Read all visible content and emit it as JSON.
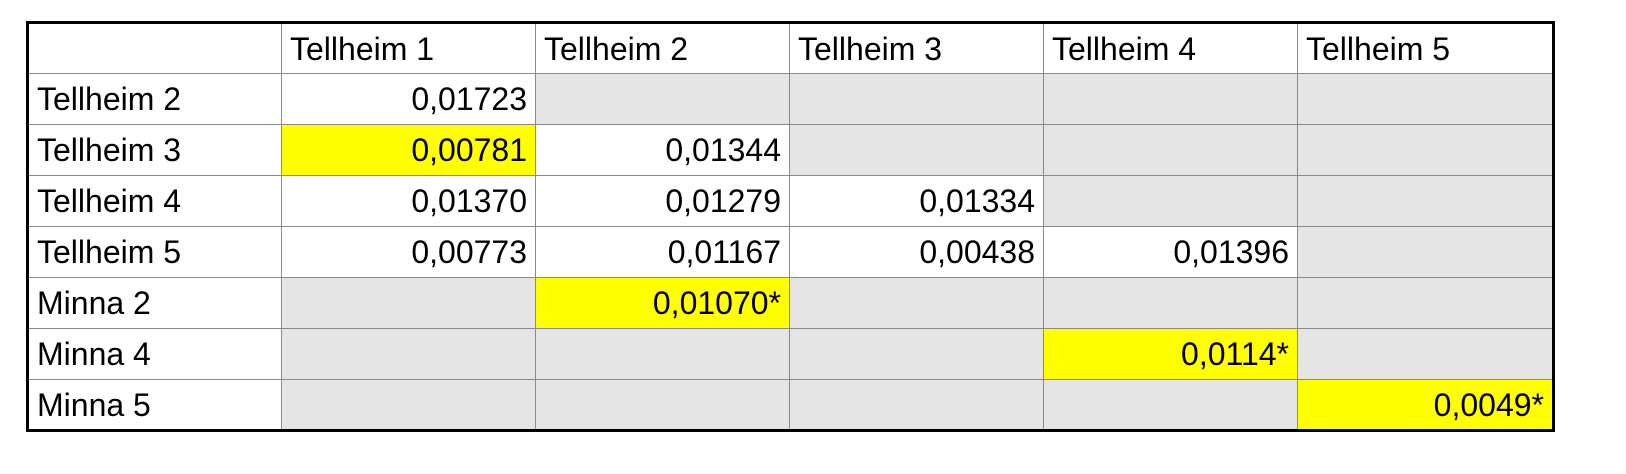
{
  "colors": {
    "cell_white": "#ffffff",
    "cell_gray": "#e6e5e5",
    "cell_highlight": "#ffff00",
    "gridline": "#8a8a8a",
    "frame": "#000000"
  },
  "table": {
    "columns": [
      "Tellheim 1",
      "Tellheim 2",
      "Tellheim 3",
      "Tellheim 4",
      "Tellheim 5"
    ],
    "rows": [
      {
        "label": "Tellheim 2",
        "cells": [
          {
            "text": "0,01723",
            "fill": "white"
          },
          {
            "text": "",
            "fill": "gray"
          },
          {
            "text": "",
            "fill": "gray"
          },
          {
            "text": "",
            "fill": "gray"
          },
          {
            "text": "",
            "fill": "gray"
          }
        ]
      },
      {
        "label": "Tellheim 3",
        "cells": [
          {
            "text": "0,00781",
            "fill": "highlight"
          },
          {
            "text": "0,01344",
            "fill": "white"
          },
          {
            "text": "",
            "fill": "gray"
          },
          {
            "text": "",
            "fill": "gray"
          },
          {
            "text": "",
            "fill": "gray"
          }
        ]
      },
      {
        "label": "Tellheim 4",
        "cells": [
          {
            "text": "0,01370",
            "fill": "white"
          },
          {
            "text": "0,01279",
            "fill": "white"
          },
          {
            "text": "0,01334",
            "fill": "white"
          },
          {
            "text": "",
            "fill": "gray"
          },
          {
            "text": "",
            "fill": "gray"
          }
        ]
      },
      {
        "label": "Tellheim 5",
        "cells": [
          {
            "text": "0,00773",
            "fill": "white"
          },
          {
            "text": "0,01167",
            "fill": "white"
          },
          {
            "text": "0,00438",
            "fill": "white"
          },
          {
            "text": "0,01396",
            "fill": "white"
          },
          {
            "text": "",
            "fill": "gray"
          }
        ]
      },
      {
        "label": "Minna 2",
        "cells": [
          {
            "text": "",
            "fill": "gray"
          },
          {
            "text": "0,01070*",
            "fill": "highlight"
          },
          {
            "text": "",
            "fill": "gray"
          },
          {
            "text": "",
            "fill": "gray"
          },
          {
            "text": "",
            "fill": "gray"
          }
        ]
      },
      {
        "label": "Minna 4",
        "cells": [
          {
            "text": "",
            "fill": "gray"
          },
          {
            "text": "",
            "fill": "gray"
          },
          {
            "text": "",
            "fill": "gray"
          },
          {
            "text": "0,0114*",
            "fill": "highlight"
          },
          {
            "text": "",
            "fill": "gray"
          }
        ]
      },
      {
        "label": "Minna 5",
        "cells": [
          {
            "text": "",
            "fill": "gray"
          },
          {
            "text": "",
            "fill": "gray"
          },
          {
            "text": "",
            "fill": "gray"
          },
          {
            "text": "",
            "fill": "gray"
          },
          {
            "text": "0,0049*",
            "fill": "highlight"
          }
        ]
      }
    ]
  }
}
